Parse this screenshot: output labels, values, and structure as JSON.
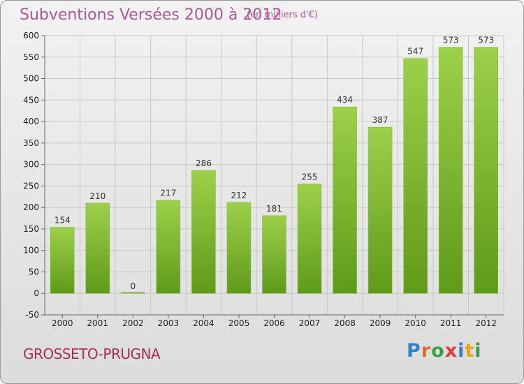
{
  "header": {
    "title": "Subventions Versées 2000 à 2012",
    "unit": "(en milliers d'€)"
  },
  "footer": {
    "commune": "GROSSETO-PRUGNA",
    "brand_letters": [
      {
        "ch": "P",
        "color": "#2b86c9"
      },
      {
        "ch": "r",
        "color": "#e36b1c"
      },
      {
        "ch": "o",
        "color": "#3aa142"
      },
      {
        "ch": "x",
        "color": "#e23a3a"
      },
      {
        "ch": "i",
        "color": "#2b86c9"
      },
      {
        "ch": "t",
        "color": "#e3a51c"
      },
      {
        "ch": "i",
        "color": "#3aa142"
      }
    ]
  },
  "colors": {
    "bar_top": "#9dd04a",
    "bar_bottom": "#5f9a19",
    "grid": "#c8c8c8",
    "title": "#a85a92",
    "commune": "#a82e57"
  },
  "chart_data": {
    "type": "bar",
    "title": "Subventions Versées 2000 à 2012",
    "subtitle": "(en milliers d'€)",
    "categories": [
      "2000",
      "2001",
      "2002",
      "2003",
      "2004",
      "2005",
      "2006",
      "2007",
      "2008",
      "2009",
      "2010",
      "2011",
      "2012"
    ],
    "values": [
      154,
      210,
      0,
      217,
      286,
      212,
      181,
      255,
      434,
      387,
      547,
      573,
      573
    ],
    "ylim": [
      -50,
      600
    ],
    "yticks": [
      -50,
      0,
      50,
      100,
      150,
      200,
      250,
      300,
      350,
      400,
      450,
      500,
      550,
      600
    ],
    "grid": true,
    "data_labels": true
  }
}
